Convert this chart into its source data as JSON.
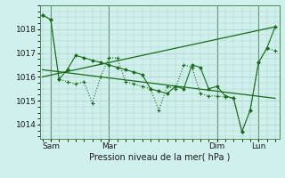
{
  "background_color": "#cff0ec",
  "line_color": "#1a6b1a",
  "grid_color": "#a8cfc8",
  "xlabel": "Pression niveau de la mer( hPa )",
  "ylim": [
    1013.4,
    1019.0
  ],
  "figsize": [
    3.2,
    2.0
  ],
  "dpi": 100,
  "series_dotted": {
    "x": [
      0,
      1,
      2,
      3,
      4,
      5,
      6,
      7,
      8,
      9,
      10,
      11,
      12,
      13,
      14,
      15,
      16,
      17,
      18,
      19,
      20,
      21,
      22,
      23,
      24,
      25,
      26,
      27,
      28
    ],
    "y": [
      1018.6,
      1018.4,
      1015.9,
      1015.8,
      1015.7,
      1015.8,
      1014.9,
      1016.0,
      1016.8,
      1016.8,
      1015.8,
      1015.7,
      1015.6,
      1015.5,
      1014.6,
      1015.6,
      1015.5,
      1016.5,
      1016.4,
      1015.3,
      1015.2,
      1015.2,
      1015.15,
      1015.1,
      1013.7,
      1014.6,
      1016.6,
      1017.2,
      1017.1
    ]
  },
  "series_solid": {
    "x": [
      0,
      1,
      2,
      3,
      4,
      5,
      6,
      7,
      8,
      9,
      10,
      11,
      12,
      13,
      14,
      15,
      16,
      17,
      18,
      19,
      20,
      21,
      22,
      23,
      24,
      25,
      26,
      27,
      28
    ],
    "y": [
      1018.6,
      1018.4,
      1015.9,
      1016.3,
      1016.9,
      1016.8,
      1016.7,
      1016.6,
      1016.5,
      1016.4,
      1016.3,
      1016.2,
      1016.1,
      1015.5,
      1015.4,
      1015.3,
      1015.6,
      1015.5,
      1016.5,
      1016.4,
      1015.5,
      1015.6,
      1015.2,
      1015.1,
      1013.7,
      1014.6,
      1016.6,
      1017.2,
      1018.1
    ]
  },
  "trend_up": {
    "x": [
      0,
      28
    ],
    "y": [
      1016.0,
      1018.1
    ]
  },
  "trend_down": {
    "x": [
      0,
      28
    ],
    "y": [
      1016.3,
      1015.1
    ]
  },
  "vlines_x": [
    1,
    8,
    21,
    26
  ],
  "x_tick_positions": [
    1,
    8,
    21,
    26
  ],
  "x_tick_labels": [
    "Sam",
    "Mar",
    "Dim",
    "Lun"
  ],
  "yticks": [
    1014,
    1015,
    1016,
    1017,
    1018
  ]
}
